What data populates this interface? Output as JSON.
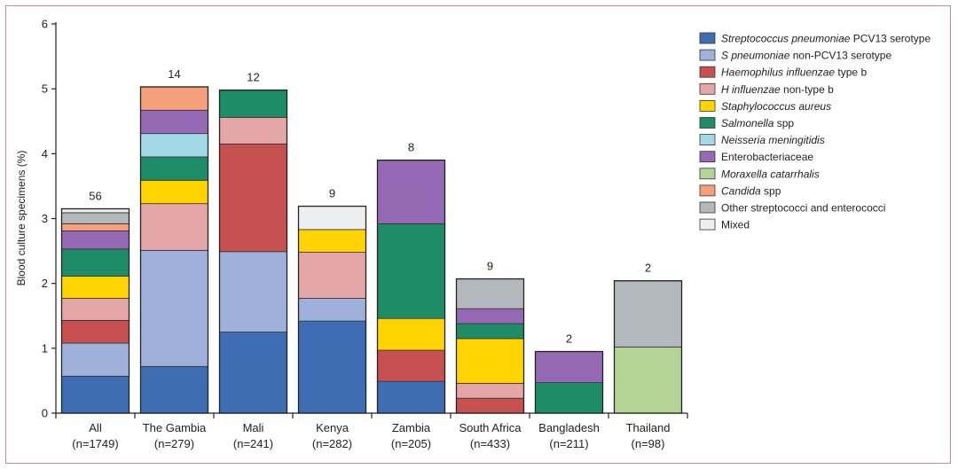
{
  "chart_data": {
    "type": "bar",
    "stacked": true,
    "ylabel": "Blood culture specimens (%)",
    "ylim": [
      0,
      6
    ],
    "yticks": [
      "0",
      "1",
      "2",
      "3",
      "4",
      "5",
      "6"
    ],
    "categories": [
      {
        "name": "All",
        "n": "(n=1749)",
        "total_label": "56"
      },
      {
        "name": "The Gambia",
        "n": "(n=279)",
        "total_label": "14"
      },
      {
        "name": "Mali",
        "n": "(n=241)",
        "total_label": "12"
      },
      {
        "name": "Kenya",
        "n": "(n=282)",
        "total_label": "9"
      },
      {
        "name": "Zambia",
        "n": "(n=205)",
        "total_label": "8"
      },
      {
        "name": "South Africa",
        "n": "(n=433)",
        "total_label": "9"
      },
      {
        "name": "Bangladesh",
        "n": "(n=211)",
        "total_label": "2"
      },
      {
        "name": "Thailand",
        "n": "(n=98)",
        "total_label": "2"
      }
    ],
    "series": [
      {
        "name_italic": "Streptococcus pneumoniae",
        "name_rest": " PCV13 serotype",
        "color": "#3f6db3",
        "values": [
          0.57,
          0.72,
          1.25,
          1.42,
          0.49,
          0.0,
          0.0,
          0.0
        ]
      },
      {
        "name_italic": "S pneumoniae",
        "name_rest": " non-PCV13 serotype",
        "color": "#9fb0db",
        "values": [
          0.51,
          1.79,
          1.24,
          0.35,
          0.0,
          0.0,
          0.0,
          0.0
        ]
      },
      {
        "name_italic": "Haemophilus influenzae",
        "name_rest": " type b",
        "color": "#c75050",
        "values": [
          0.35,
          0.0,
          1.66,
          0.0,
          0.48,
          0.23,
          0.0,
          0.0
        ]
      },
      {
        "name_italic": "H influenzae",
        "name_rest": " non-type b",
        "color": "#e4a6a6",
        "values": [
          0.34,
          0.72,
          0.41,
          0.71,
          0.0,
          0.23,
          0.0,
          0.0
        ]
      },
      {
        "name_italic": "Staphylococcus aureus",
        "name_rest": "",
        "color": "#ffd400",
        "values": [
          0.34,
          0.36,
          0.0,
          0.35,
          0.49,
          0.69,
          0.0,
          0.0
        ]
      },
      {
        "name_italic": "Salmonella",
        "name_rest": " spp",
        "color": "#1f8c68",
        "values": [
          0.42,
          0.36,
          0.42,
          0.0,
          1.46,
          0.23,
          0.47,
          0.0
        ]
      },
      {
        "name_italic": "Neisseria meningitidis",
        "name_rest": "",
        "color": "#a3d8e6",
        "values": [
          0.0,
          0.36,
          0.0,
          0.0,
          0.0,
          0.0,
          0.0,
          0.0
        ]
      },
      {
        "name_italic": "",
        "name_rest": "Enterobacteriaceae",
        "color": "#9569b3",
        "values": [
          0.28,
          0.36,
          0.0,
          0.0,
          0.98,
          0.23,
          0.48,
          0.0
        ]
      },
      {
        "name_italic": "Moraxella catarrhalis",
        "name_rest": "",
        "color": "#b4d496",
        "values": [
          0.0,
          0.0,
          0.0,
          0.0,
          0.0,
          0.0,
          0.0,
          1.02
        ]
      },
      {
        "name_italic": "Candida",
        "name_rest": " spp",
        "color": "#f5a07a",
        "values": [
          0.11,
          0.36,
          0.0,
          0.0,
          0.0,
          0.0,
          0.0,
          0.0
        ]
      },
      {
        "name_italic": "",
        "name_rest": "Other streptococci and enterococci",
        "color": "#b3b8bd",
        "values": [
          0.17,
          0.0,
          0.0,
          0.0,
          0.0,
          0.46,
          0.0,
          1.02
        ]
      },
      {
        "name_italic": "",
        "name_rest": "Mixed",
        "color": "#eceef0",
        "values": [
          0.06,
          0.0,
          0.0,
          0.36,
          0.0,
          0.0,
          0.0,
          0.0
        ]
      }
    ]
  }
}
